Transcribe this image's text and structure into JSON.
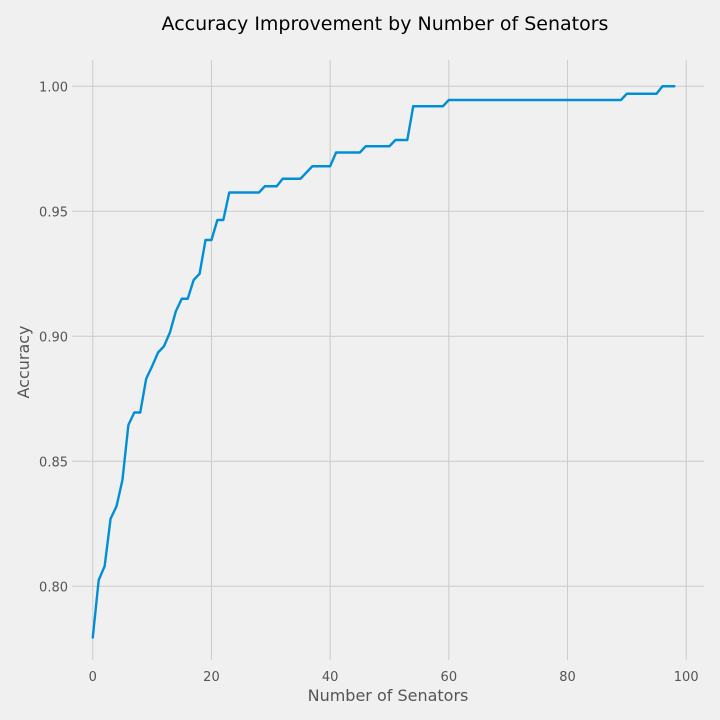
{
  "chart_data": {
    "type": "line",
    "title": "Accuracy Improvement by Number of Senators",
    "xlabel": "Number of Senators",
    "ylabel": "Accuracy",
    "xlim": [
      -3.5,
      103
    ],
    "ylim": [
      0.7705,
      1.0105
    ],
    "xticks": [
      0,
      20,
      40,
      60,
      80,
      100
    ],
    "xtick_labels": [
      "0",
      "20",
      "40",
      "60",
      "80",
      "100"
    ],
    "yticks": [
      0.8,
      0.85,
      0.9,
      0.95,
      1.0
    ],
    "ytick_labels": [
      "0.80",
      "0.85",
      "0.90",
      "0.95",
      "1.00"
    ],
    "grid": true,
    "style": "fivethirtyeight",
    "line_color": "#008fd5",
    "background_color": "#f0f0f0",
    "series": [
      {
        "x": [
          0,
          1,
          2,
          3,
          4,
          5,
          6,
          7,
          8,
          9,
          10,
          11,
          12,
          13,
          14,
          15,
          16,
          17,
          18,
          19,
          20,
          21,
          22,
          23,
          24,
          25,
          26,
          27,
          28,
          29,
          30,
          31,
          32,
          33,
          34,
          35,
          36,
          37,
          38,
          39,
          40,
          41,
          42,
          43,
          44,
          45,
          46,
          47,
          48,
          49,
          50,
          51,
          52,
          53,
          54,
          55,
          56,
          57,
          58,
          59,
          60,
          61,
          62,
          63,
          64,
          65,
          66,
          67,
          68,
          69,
          70,
          71,
          72,
          73,
          74,
          75,
          76,
          77,
          78,
          79,
          80,
          81,
          82,
          83,
          84,
          85,
          86,
          87,
          88,
          89,
          90,
          91,
          92,
          93,
          94,
          95,
          96,
          97,
          98
        ],
        "y": [
          0.7795,
          0.8025,
          0.808,
          0.827,
          0.832,
          0.8425,
          0.8645,
          0.8695,
          0.8695,
          0.883,
          0.888,
          0.8935,
          0.896,
          0.9015,
          0.91,
          0.915,
          0.915,
          0.9225,
          0.925,
          0.9385,
          0.9385,
          0.9465,
          0.9465,
          0.9575,
          0.9575,
          0.9575,
          0.9575,
          0.9575,
          0.9575,
          0.96,
          0.96,
          0.96,
          0.963,
          0.963,
          0.963,
          0.963,
          0.9655,
          0.968,
          0.968,
          0.968,
          0.968,
          0.9735,
          0.9735,
          0.9735,
          0.9735,
          0.9735,
          0.976,
          0.976,
          0.976,
          0.976,
          0.976,
          0.9785,
          0.9785,
          0.9785,
          0.992,
          0.992,
          0.992,
          0.992,
          0.992,
          0.992,
          0.9945,
          0.9945,
          0.9945,
          0.9945,
          0.9945,
          0.9945,
          0.9945,
          0.9945,
          0.9945,
          0.9945,
          0.9945,
          0.9945,
          0.9945,
          0.9945,
          0.9945,
          0.9945,
          0.9945,
          0.9945,
          0.9945,
          0.9945,
          0.9945,
          0.9945,
          0.9945,
          0.9945,
          0.9945,
          0.9945,
          0.9945,
          0.9945,
          0.9945,
          0.9945,
          0.997,
          0.997,
          0.997,
          0.997,
          0.997,
          0.997,
          1.0,
          1.0,
          1.0
        ]
      }
    ]
  }
}
